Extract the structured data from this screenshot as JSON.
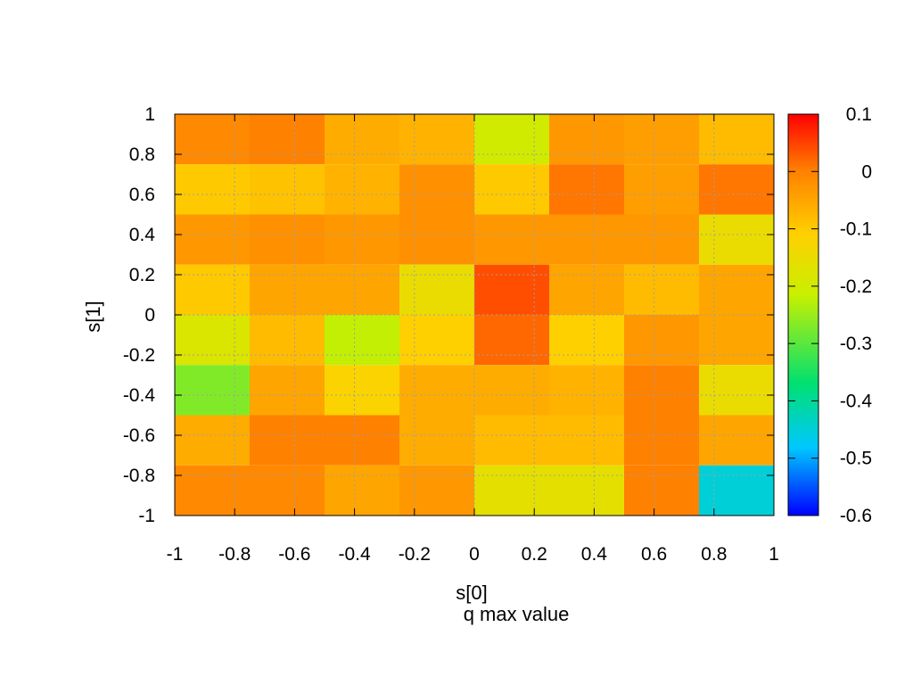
{
  "chart_data": {
    "type": "heatmap",
    "title": "q max value",
    "xlabel": "s[0]",
    "ylabel": "s[1]",
    "xlim": [
      -1,
      1
    ],
    "ylim": [
      -1,
      1
    ],
    "grid": true,
    "colorbar": {
      "range": [
        -0.6,
        0.1
      ],
      "ticks": [
        "0.1",
        "0",
        "-0.1",
        "-0.2",
        "-0.3",
        "-0.4",
        "-0.5",
        "-0.6"
      ],
      "colormap": [
        "#0000ff",
        "#00c8ff",
        "#00e070",
        "#c8f000",
        "#ffd000",
        "#ff8000",
        "#ff0000"
      ]
    },
    "x_ticks": [
      "-1",
      "-0.8",
      "-0.6",
      "-0.4",
      "-0.2",
      "0",
      "0.2",
      "0.4",
      "0.6",
      "0.8",
      "1"
    ],
    "y_ticks": [
      "1",
      "0.8",
      "0.6",
      "0.4",
      "0.2",
      "0",
      "-0.2",
      "-0.4",
      "-0.6",
      "-0.8",
      "-1"
    ],
    "x_centers": [
      -0.875,
      -0.625,
      -0.375,
      -0.125,
      0.125,
      0.375,
      0.625,
      0.875
    ],
    "y_centers": [
      -0.875,
      -0.625,
      -0.375,
      -0.125,
      0.125,
      0.375,
      0.625,
      0.875
    ],
    "z_rows_top_to_bottom": [
      [
        -0.01,
        0.0,
        -0.06,
        -0.07,
        -0.2,
        -0.03,
        -0.04,
        -0.08
      ],
      [
        -0.1,
        -0.09,
        -0.07,
        -0.02,
        -0.1,
        0.01,
        -0.04,
        0.01
      ],
      [
        -0.03,
        -0.02,
        -0.03,
        -0.02,
        -0.03,
        -0.03,
        -0.03,
        -0.15
      ],
      [
        -0.1,
        -0.05,
        -0.05,
        -0.15,
        0.04,
        -0.05,
        -0.08,
        -0.05
      ],
      [
        -0.18,
        -0.08,
        -0.22,
        -0.11,
        0.02,
        -0.11,
        -0.03,
        -0.05
      ],
      [
        -0.27,
        -0.05,
        -0.12,
        -0.06,
        -0.06,
        -0.07,
        0.0,
        -0.15
      ],
      [
        -0.06,
        0.0,
        0.0,
        -0.06,
        -0.08,
        -0.08,
        0.0,
        -0.05
      ],
      [
        -0.01,
        -0.01,
        -0.05,
        -0.03,
        -0.16,
        -0.16,
        0.0,
        -0.45
      ]
    ]
  }
}
